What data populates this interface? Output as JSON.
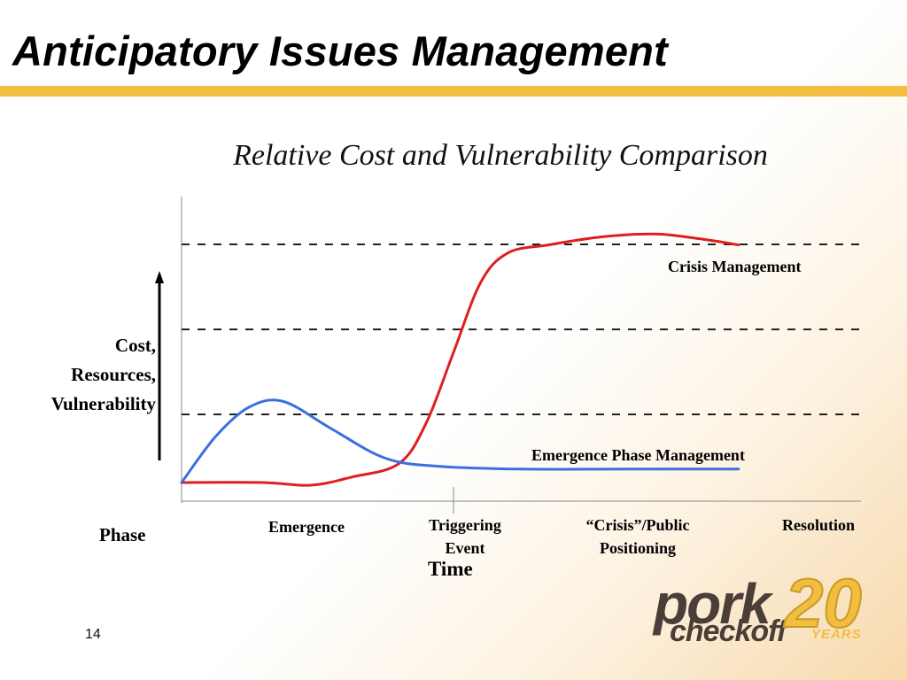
{
  "slide": {
    "title": "Anticipatory Issues Management",
    "page_number": "14",
    "accent_color": "#f3bd3f"
  },
  "chart_data": {
    "type": "line",
    "title": "Relative Cost and Vulnerability Comparison",
    "xlabel": "Time",
    "ylabel_lines": [
      "Cost,",
      "Resources,",
      "Vulnerability"
    ],
    "phase_label": "Phase",
    "phases": [
      {
        "line1": "Emergence",
        "line2": ""
      },
      {
        "line1": "Triggering",
        "line2": "Event"
      },
      {
        "line1": "“Crisis”/Public",
        "line2": "Positioning"
      },
      {
        "line1": "Resolution",
        "line2": ""
      }
    ],
    "reference_lines": 3,
    "series": [
      {
        "name": "Crisis Management",
        "color": "#dd1f1f",
        "points": [
          [
            0,
            0.0
          ],
          [
            0.12,
            0.0
          ],
          [
            0.19,
            -0.01
          ],
          [
            0.25,
            0.02
          ],
          [
            0.32,
            0.07
          ],
          [
            0.36,
            0.22
          ],
          [
            0.4,
            0.48
          ],
          [
            0.44,
            0.74
          ],
          [
            0.48,
            0.85
          ],
          [
            0.54,
            0.88
          ],
          [
            0.62,
            0.91
          ],
          [
            0.7,
            0.92
          ],
          [
            0.77,
            0.9
          ],
          [
            0.82,
            0.88
          ]
        ]
      },
      {
        "name": "Emergence Phase Management",
        "color": "#3a6fe0",
        "points": [
          [
            0,
            0.0
          ],
          [
            0.05,
            0.17
          ],
          [
            0.1,
            0.28
          ],
          [
            0.15,
            0.3
          ],
          [
            0.22,
            0.2
          ],
          [
            0.3,
            0.09
          ],
          [
            0.38,
            0.06
          ],
          [
            0.5,
            0.05
          ],
          [
            0.65,
            0.05
          ],
          [
            0.82,
            0.05
          ]
        ]
      }
    ],
    "legend_placement": "inline labels"
  },
  "logo": {
    "brand_top": "pork",
    "brand_bottom": "checkoff",
    "number": "20",
    "years": "YEARS"
  }
}
